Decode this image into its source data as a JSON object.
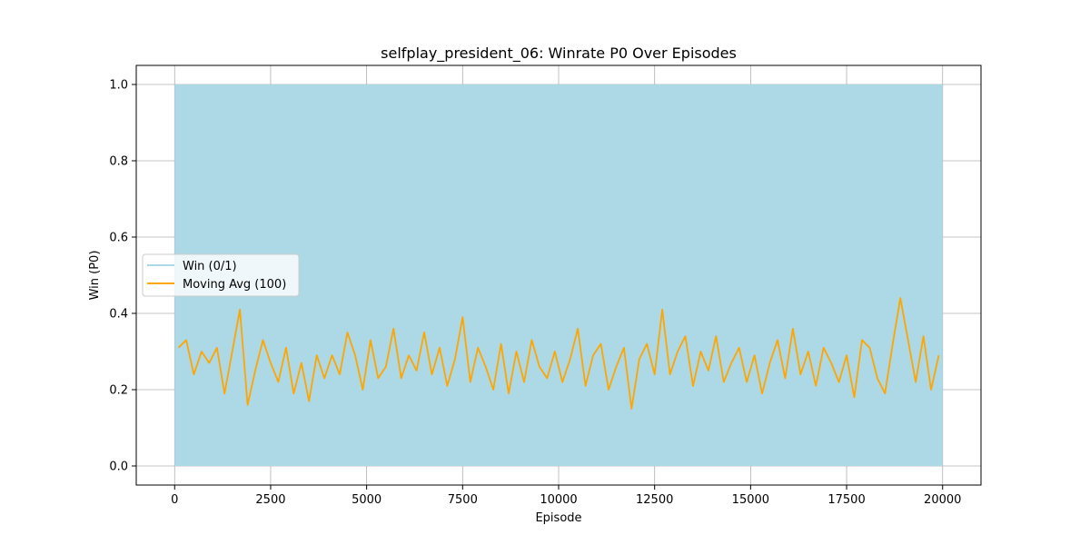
{
  "chart_data": {
    "type": "line",
    "title": "selfplay_president_06: Winrate P0 Over Episodes",
    "xlabel": "Episode",
    "ylabel": "Win (P0)",
    "xlim": [
      -1000,
      21000
    ],
    "ylim": [
      -0.05,
      1.05
    ],
    "xticks": [
      0,
      2500,
      5000,
      7500,
      10000,
      12500,
      15000,
      17500,
      20000
    ],
    "xtick_labels": [
      "0",
      "2500",
      "5000",
      "7500",
      "10000",
      "12500",
      "15000",
      "17500",
      "20000"
    ],
    "yticks": [
      0.0,
      0.2,
      0.4,
      0.6,
      0.8,
      1.0
    ],
    "ytick_labels": [
      "0.0",
      "0.2",
      "0.4",
      "0.6",
      "0.8",
      "1.0"
    ],
    "grid": true,
    "legend_position": "center-left",
    "series": [
      {
        "name": "Win (0/1)",
        "color": "#add8e6",
        "style": "dense-binary",
        "x_range": [
          0,
          20000
        ],
        "y_range": [
          0,
          1
        ]
      },
      {
        "name": "Moving Avg (100)",
        "color": "#ffa500",
        "x": [
          100,
          300,
          500,
          700,
          900,
          1100,
          1300,
          1500,
          1700,
          1900,
          2100,
          2300,
          2500,
          2700,
          2900,
          3100,
          3300,
          3500,
          3700,
          3900,
          4100,
          4300,
          4500,
          4700,
          4900,
          5100,
          5300,
          5500,
          5700,
          5900,
          6100,
          6300,
          6500,
          6700,
          6900,
          7100,
          7300,
          7500,
          7700,
          7900,
          8100,
          8300,
          8500,
          8700,
          8900,
          9100,
          9300,
          9500,
          9700,
          9900,
          10100,
          10300,
          10500,
          10700,
          10900,
          11100,
          11300,
          11500,
          11700,
          11900,
          12100,
          12300,
          12500,
          12700,
          12900,
          13100,
          13300,
          13500,
          13700,
          13900,
          14100,
          14300,
          14500,
          14700,
          14900,
          15100,
          15300,
          15500,
          15700,
          15900,
          16100,
          16300,
          16500,
          16700,
          16900,
          17100,
          17300,
          17500,
          17700,
          17900,
          18100,
          18300,
          18500,
          18700,
          18900,
          19100,
          19300,
          19500,
          19700,
          19900
        ],
        "values": [
          0.31,
          0.33,
          0.24,
          0.3,
          0.27,
          0.31,
          0.19,
          0.3,
          0.41,
          0.16,
          0.25,
          0.33,
          0.27,
          0.22,
          0.31,
          0.19,
          0.27,
          0.17,
          0.29,
          0.23,
          0.29,
          0.24,
          0.35,
          0.29,
          0.2,
          0.33,
          0.23,
          0.26,
          0.36,
          0.23,
          0.29,
          0.25,
          0.35,
          0.24,
          0.31,
          0.21,
          0.28,
          0.39,
          0.22,
          0.31,
          0.26,
          0.2,
          0.32,
          0.19,
          0.3,
          0.22,
          0.33,
          0.26,
          0.23,
          0.3,
          0.22,
          0.28,
          0.36,
          0.21,
          0.29,
          0.32,
          0.2,
          0.26,
          0.31,
          0.15,
          0.28,
          0.32,
          0.24,
          0.41,
          0.24,
          0.3,
          0.34,
          0.21,
          0.3,
          0.25,
          0.34,
          0.22,
          0.27,
          0.31,
          0.22,
          0.29,
          0.19,
          0.27,
          0.33,
          0.23,
          0.36,
          0.24,
          0.3,
          0.21,
          0.31,
          0.27,
          0.22,
          0.29,
          0.18,
          0.33,
          0.31,
          0.23,
          0.19,
          0.32,
          0.44,
          0.33,
          0.22,
          0.34,
          0.2,
          0.29
        ]
      }
    ]
  }
}
